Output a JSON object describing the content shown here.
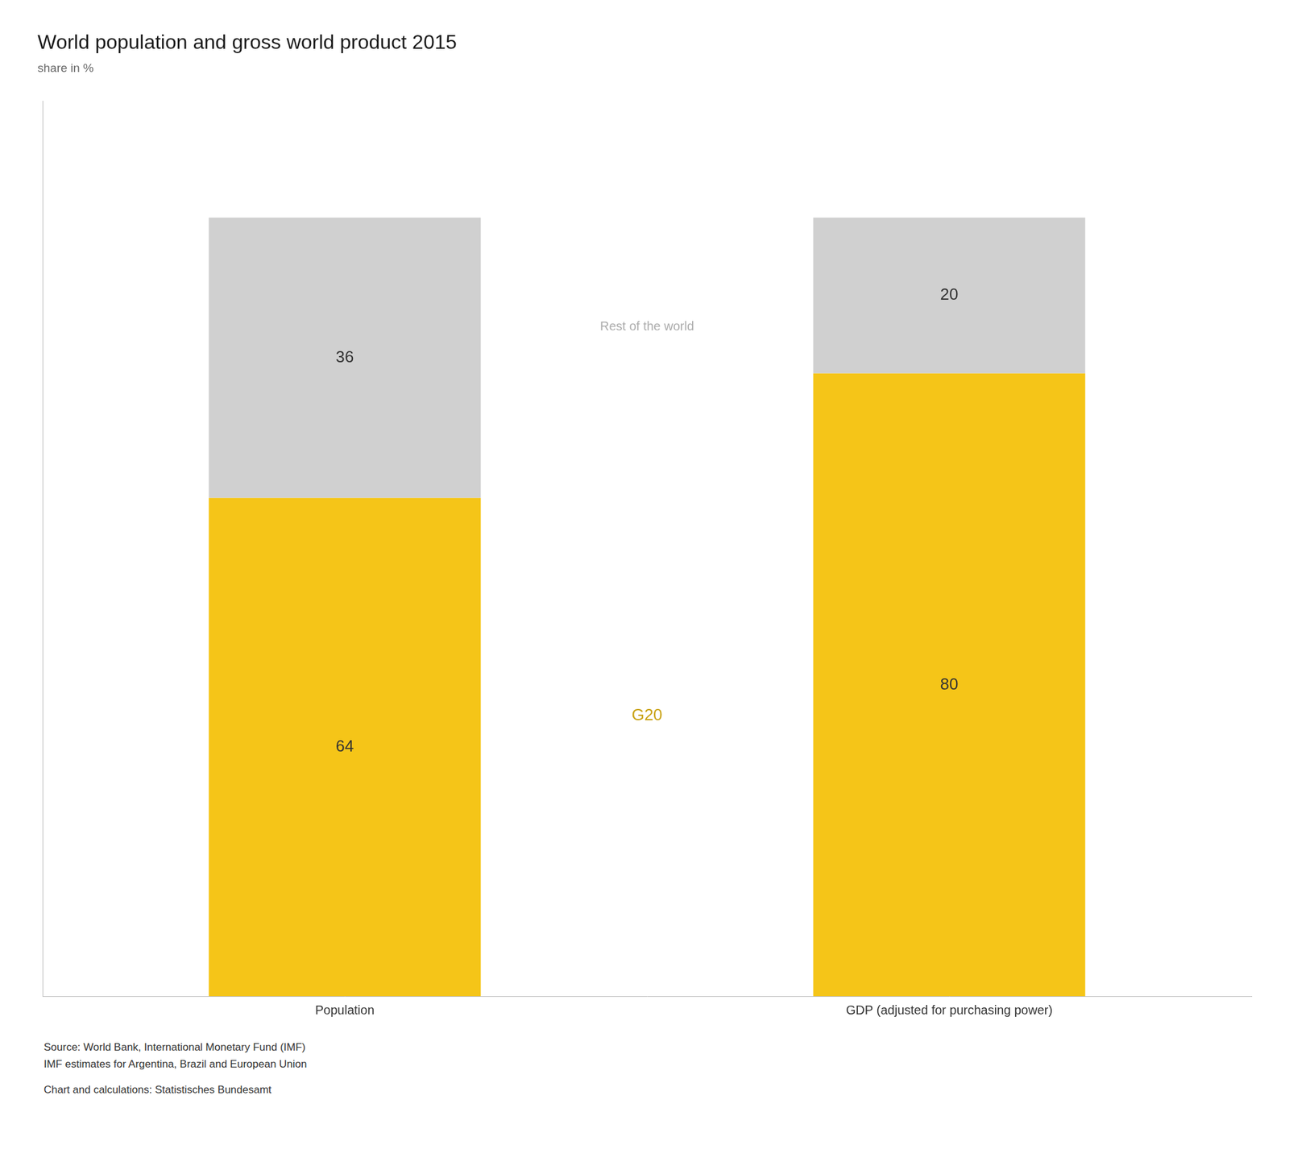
{
  "chart_data": {
    "type": "bar",
    "title": "World population and gross world product 2015",
    "subtitle": "share in %",
    "categories": [
      "Population",
      "GDP (adjusted for purchasing power)"
    ],
    "series": [
      {
        "name": "G20",
        "color": "#F5C518",
        "values": [
          64,
          80
        ]
      },
      {
        "name": "Rest of the world",
        "color": "#D0D0D0",
        "values": [
          36,
          20
        ]
      }
    ],
    "stacked": true,
    "data_labels": true,
    "ylim": [
      0,
      115
    ],
    "tick_labels": "x",
    "grid": false,
    "annotations": [
      "Source: World Bank, International Monetary Fund (IMF)",
      "IMF estimates for Argentina, Brazil and European Union",
      "Chart and calculations: Statistisches Bundesamt"
    ]
  }
}
